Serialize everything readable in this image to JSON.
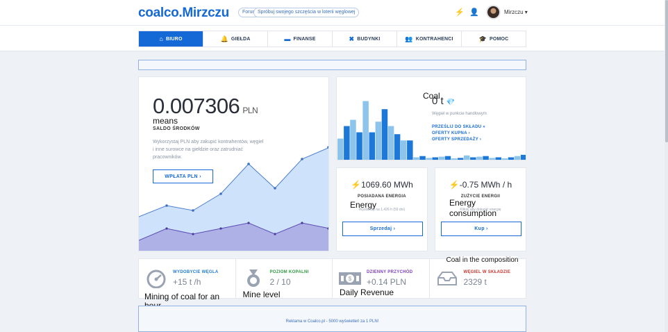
{
  "header": {
    "logo": "coalco.Mirzczu",
    "forum": "Forum",
    "lottery": "Spróbuj swojego szczęścia w loterii węglowej",
    "username": "Mirzczu ▾",
    "bolt_icon": "⚡",
    "user_icon": "👤"
  },
  "nav": [
    {
      "label": "BIURO",
      "icon": "⌂"
    },
    {
      "label": "GIEŁDA",
      "icon": "🔔"
    },
    {
      "label": "FINANSE",
      "icon": "▬"
    },
    {
      "label": "BUDYNKI",
      "icon": "✖"
    },
    {
      "label": "KONTRAHENCI",
      "icon": "👥"
    },
    {
      "label": "POMOC",
      "icon": "🎓"
    }
  ],
  "balance": {
    "amount": "0.007306",
    "unit": "PLN",
    "note": "means",
    "label": "SALDO ŚRODKÓW",
    "description": "Wykorzystaj PLN aby zakupić kontrahentów, węgiel i inne surowce na giełdzie oraz zatrudniać pracowników.",
    "button": "WPŁATA PLN  ›"
  },
  "coal": {
    "note": "Coal",
    "amount": "0 t",
    "icon": "💎",
    "subtitle": "Węgiel w punkcie handlowym",
    "links": [
      "PRZEŚLIJ DO SKŁADU «",
      "OFERTY KUPNA  ›",
      "OFERTY SPRZEDAŻY  ›"
    ],
    "histogram": [
      0.35,
      0.55,
      0.65,
      0.45,
      0.95,
      0.45,
      0.62,
      0.82,
      0.55,
      0.42,
      0.32,
      0.32,
      0.05,
      0.07,
      0.04,
      0.05,
      0.06,
      0.07,
      0.03,
      0.04,
      0.08,
      0.05,
      0.06,
      0.07,
      0.04,
      0.05,
      0.03,
      0.05,
      0.07,
      0.09
    ]
  },
  "energy_owned": {
    "value": "1069.60 MWh",
    "label": "POSIADANA ENERGIA",
    "note": "Energy",
    "subtitle": "Wystarczy na 1,426 h (59 dni)",
    "button": "Sprzedaj  ›"
  },
  "energy_usage": {
    "value": "-0.75 MWh / h",
    "label": "ZUŻYCIE ENERGII",
    "note": "Energy consumption",
    "subtitle": "Kliknij aby dokupić energię",
    "button": "Kup  ›"
  },
  "stats": [
    {
      "label": "WYDOBYCIE WĘGLA",
      "value": "+15 t /h",
      "color": "#1e78d7",
      "note": "Mining of coal for an hour"
    },
    {
      "label": "POZIOM KOPALNI",
      "value": "2 / 10",
      "color": "#2e9a3f",
      "note": "Mine level"
    },
    {
      "label": "DZIENNY PRZYCHÓD",
      "value": "+0.14 PLN",
      "color": "#7b3ec6",
      "note": "Daily Revenue"
    },
    {
      "label": "WĘGIEL W SKŁADZIE",
      "value": "2329 t",
      "color": "#d2312b",
      "note": "Coal in the composition"
    }
  ],
  "ad": {
    "text": "Reklama w Coalco.pl - 5000 wyświetleń za 1 PLN!"
  }
}
